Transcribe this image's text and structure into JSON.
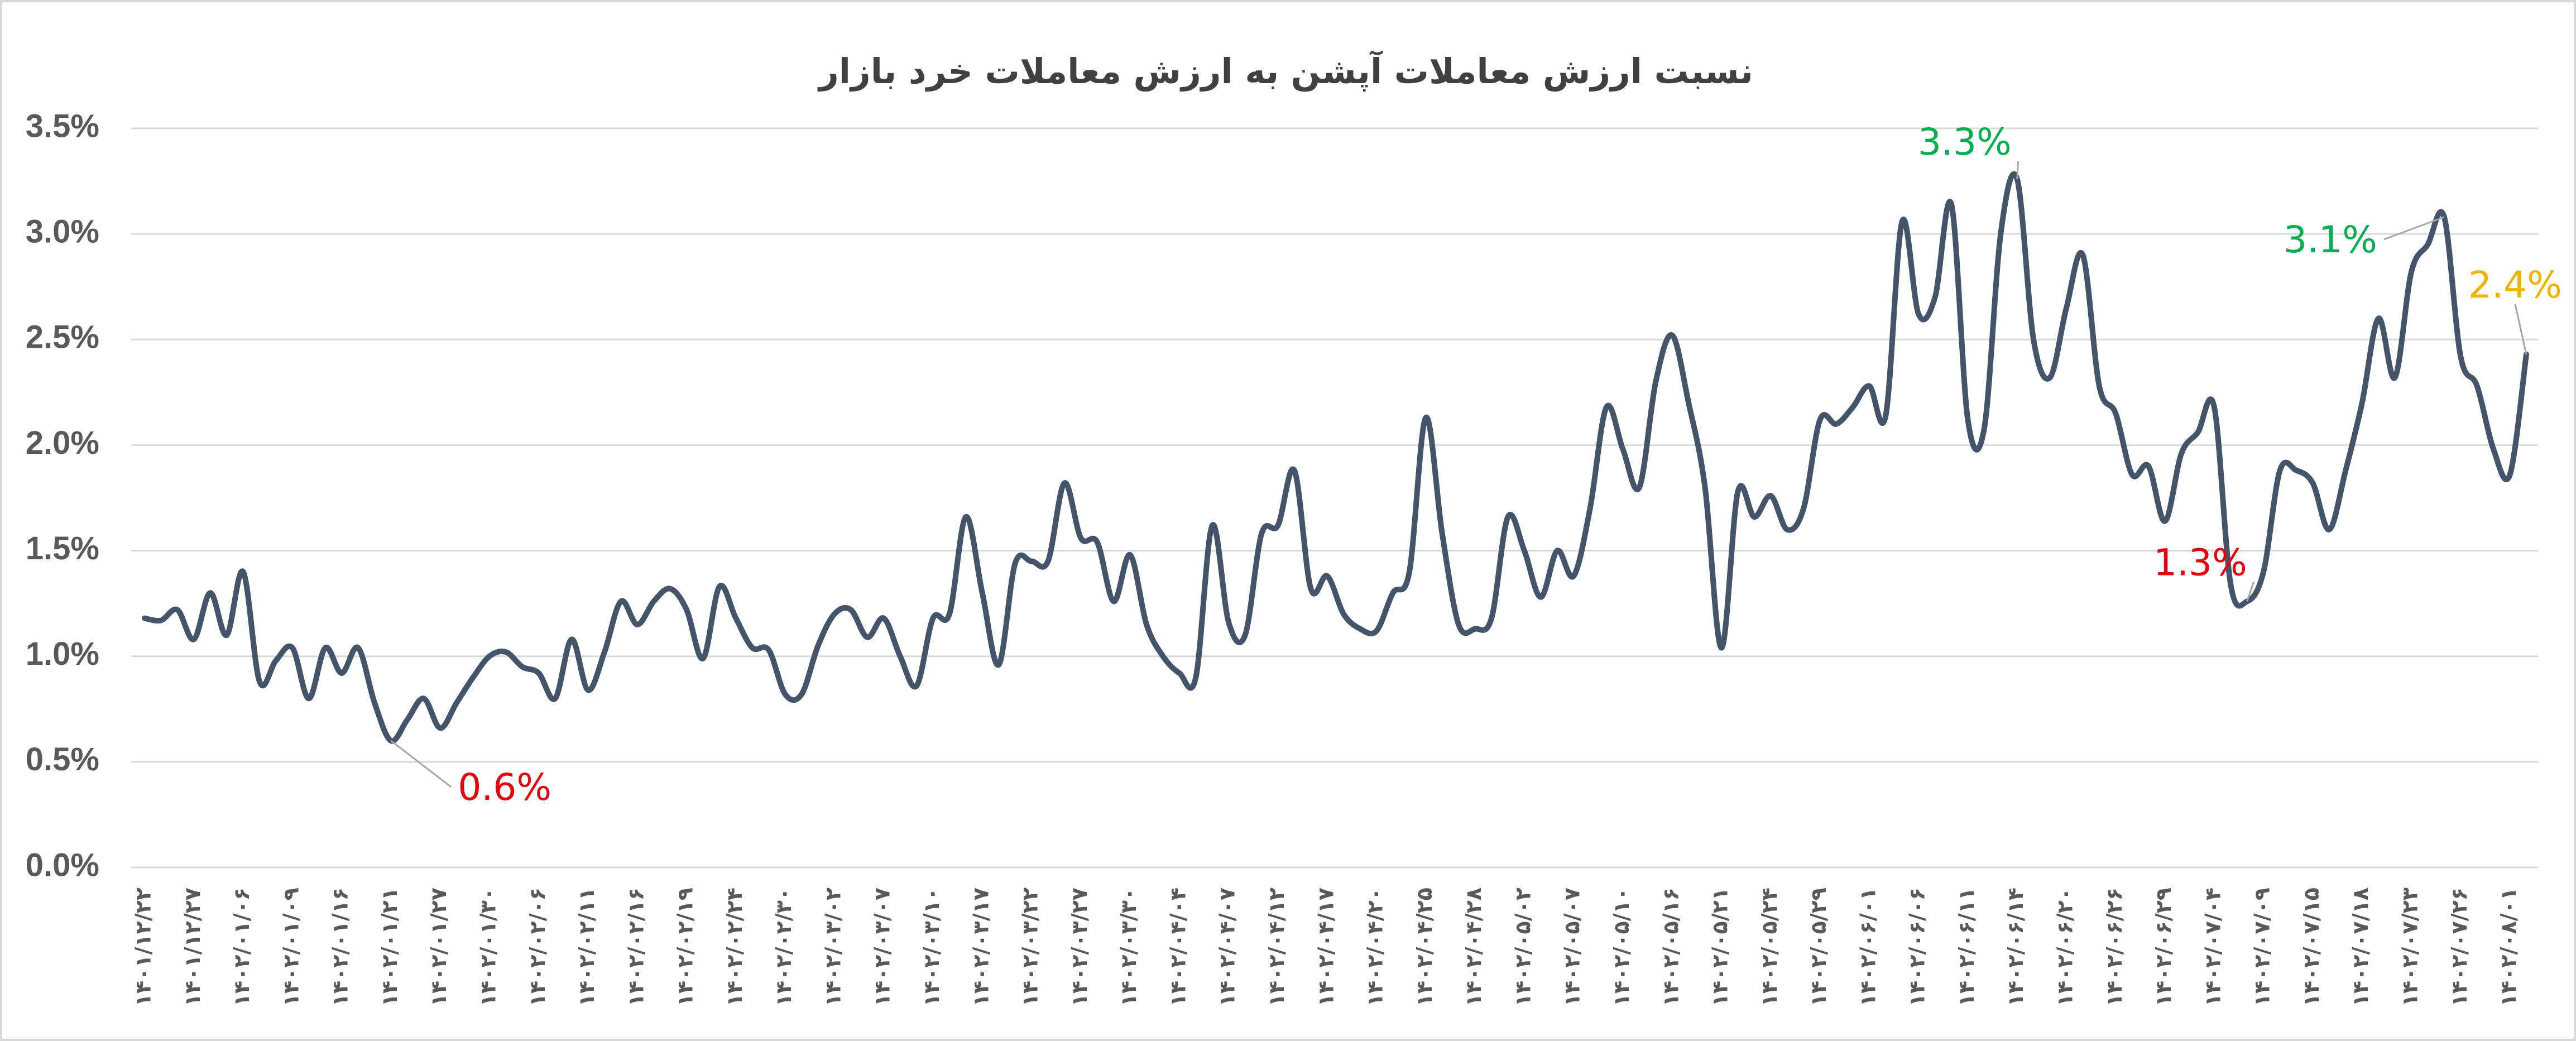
{
  "chart_data": {
    "type": "line",
    "title": "نسبت ارزش معاملات آپشن به ارزش معاملات خرد بازار",
    "categories": [
      "۱۴۰۱/۱۲/۲۲",
      null,
      null,
      "۱۴۰۱/۱۲/۲۷",
      null,
      null,
      "۱۴۰۲/۰۱/۰۶",
      null,
      null,
      "۱۴۰۲/۰۱/۰۹",
      null,
      null,
      "۱۴۰۲/۰۱/۱۶",
      null,
      null,
      "۱۴۰۲/۰۱/۲۱",
      null,
      null,
      "۱۴۰۲/۰۱/۲۷",
      null,
      null,
      "۱۴۰۲/۰۱/۳۰",
      null,
      null,
      "۱۴۰۲/۰۲/۰۶",
      null,
      null,
      "۱۴۰۲/۰۲/۱۱",
      null,
      null,
      "۱۴۰۲/۰۲/۱۶",
      null,
      null,
      "۱۴۰۲/۰۲/۱۹",
      null,
      null,
      "۱۴۰۲/۰۲/۲۴",
      null,
      null,
      "۱۴۰۲/۰۲/۳۰",
      null,
      null,
      "۱۴۰۲/۰۳/۰۲",
      null,
      null,
      "۱۴۰۲/۰۳/۰۷",
      null,
      null,
      "۱۴۰۲/۰۳/۱۰",
      null,
      null,
      "۱۴۰۲/۰۳/۱۷",
      null,
      null,
      "۱۴۰۲/۰۳/۲۲",
      null,
      null,
      "۱۴۰۲/۰۳/۲۷",
      null,
      null,
      "۱۴۰۲/۰۳/۳۰",
      null,
      null,
      "۱۴۰۲/۰۴/۰۴",
      null,
      null,
      "۱۴۰۲/۰۴/۰۷",
      null,
      null,
      "۱۴۰۲/۰۴/۱۲",
      null,
      null,
      "۱۴۰۲/۰۴/۱۷",
      null,
      null,
      "۱۴۰۲/۰۴/۲۰",
      null,
      null,
      "۱۴۰۲/۰۴/۲۵",
      null,
      null,
      "۱۴۰۲/۰۴/۲۸",
      null,
      null,
      "۱۴۰۲/۰۵/۰۲",
      null,
      null,
      "۱۴۰۲/۰۵/۰۷",
      null,
      null,
      "۱۴۰۲/۰۵/۱۰",
      null,
      null,
      "۱۴۰۲/۰۵/۱۶",
      null,
      null,
      "۱۴۰۲/۰۵/۲۱",
      null,
      null,
      "۱۴۰۲/۰۵/۲۴",
      null,
      null,
      "۱۴۰۲/۰۵/۲۹",
      null,
      null,
      "۱۴۰۲/۰۶/۰۱",
      null,
      null,
      "۱۴۰۲/۰۶/۰۶",
      null,
      null,
      "۱۴۰۲/۰۶/۱۱",
      null,
      null,
      "۱۴۰۲/۰۶/۱۴",
      null,
      null,
      "۱۴۰۲/۰۶/۲۰",
      null,
      null,
      "۱۴۰۲/۰۶/۲۶",
      null,
      null,
      "۱۴۰۲/۰۶/۲۹",
      null,
      null,
      "۱۴۰۲/۰۷/۰۴",
      null,
      null,
      "۱۴۰۲/۰۷/۰۹",
      null,
      null,
      "۱۴۰۲/۰۷/۱۵",
      null,
      null,
      "۱۴۰۲/۰۷/۱۸",
      null,
      null,
      "۱۴۰۲/۰۷/۲۳",
      null,
      null,
      "۱۴۰۲/۰۷/۲۶",
      null,
      null,
      "۱۴۰۲/۰۸/۰۱",
      null
    ],
    "series": [
      {
        "color": "#44546a",
        "values": [
          1.18,
          1.17,
          1.22,
          1.08,
          1.3,
          1.1,
          1.4,
          0.88,
          0.98,
          1.04,
          0.8,
          1.04,
          0.92,
          1.04,
          0.78,
          0.6,
          0.7,
          0.8,
          0.66,
          0.78,
          0.9,
          1.0,
          1.02,
          0.95,
          0.92,
          0.8,
          1.08,
          0.84,
          1.02,
          1.26,
          1.15,
          1.26,
          1.32,
          1.22,
          0.99,
          1.33,
          1.18,
          1.04,
          1.03,
          0.82,
          0.82,
          1.05,
          1.2,
          1.22,
          1.09,
          1.18,
          1.0,
          0.86,
          1.18,
          1.2,
          1.66,
          1.3,
          0.96,
          1.44,
          1.45,
          1.45,
          1.82,
          1.56,
          1.54,
          1.26,
          1.48,
          1.15,
          1.0,
          0.92,
          0.9,
          1.62,
          1.16,
          1.1,
          1.58,
          1.62,
          1.88,
          1.32,
          1.38,
          1.2,
          1.13,
          1.12,
          1.3,
          1.4,
          2.13,
          1.58,
          1.15,
          1.13,
          1.18,
          1.66,
          1.5,
          1.28,
          1.5,
          1.38,
          1.7,
          2.18,
          1.98,
          1.8,
          2.3,
          2.52,
          2.2,
          1.8,
          1.04,
          1.78,
          1.66,
          1.76,
          1.6,
          1.7,
          2.12,
          2.1,
          2.18,
          2.28,
          2.14,
          3.06,
          2.62,
          2.7,
          3.14,
          2.12,
          2.08,
          3.0,
          3.26,
          2.5,
          2.32,
          2.65,
          2.9,
          2.28,
          2.15,
          1.86,
          1.9,
          1.64,
          1.96,
          2.06,
          2.18,
          1.34,
          1.26,
          1.4,
          1.88,
          1.88,
          1.82,
          1.6,
          1.88,
          2.2,
          2.6,
          2.32,
          2.82,
          2.95,
          3.08,
          2.42,
          2.28,
          1.98,
          1.86,
          2.43
        ],
        "value_labels": [
          null,
          null,
          null,
          null,
          null,
          null,
          null,
          null,
          null,
          null,
          null,
          null,
          null,
          null,
          null,
          "0.6%",
          null,
          null,
          null,
          null,
          null,
          null,
          null,
          null,
          null,
          null,
          null,
          null,
          null,
          null,
          null,
          null,
          null,
          null,
          null,
          null,
          null,
          null,
          null,
          null,
          null,
          null,
          null,
          null,
          null,
          null,
          null,
          null,
          null,
          null,
          null,
          null,
          null,
          null,
          null,
          null,
          null,
          null,
          null,
          null,
          null,
          null,
          null,
          null,
          null,
          null,
          null,
          null,
          null,
          null,
          null,
          null,
          null,
          null,
          null,
          null,
          null,
          null,
          null,
          null,
          null,
          null,
          null,
          null,
          null,
          null,
          null,
          null,
          null,
          null,
          null,
          null,
          null,
          null,
          null,
          null,
          null,
          null,
          null,
          null,
          null,
          null,
          null,
          null,
          null,
          null,
          null,
          null,
          null,
          null,
          null,
          null,
          null,
          null,
          "3.3%",
          null,
          null,
          null,
          null,
          null,
          null,
          null,
          null,
          null,
          null,
          null,
          null,
          null,
          "1.3%",
          null,
          null,
          null,
          null,
          null,
          null,
          null,
          null,
          null,
          null,
          null,
          "3.1%",
          null,
          null,
          null,
          null,
          "2.4%"
        ],
        "value_label_colors": [
          null,
          null,
          null,
          null,
          null,
          null,
          null,
          null,
          null,
          null,
          null,
          null,
          null,
          null,
          null,
          "#e8000b",
          null,
          null,
          null,
          null,
          null,
          null,
          null,
          null,
          null,
          null,
          null,
          null,
          null,
          null,
          null,
          null,
          null,
          null,
          null,
          null,
          null,
          null,
          null,
          null,
          null,
          null,
          null,
          null,
          null,
          null,
          null,
          null,
          null,
          null,
          null,
          null,
          null,
          null,
          null,
          null,
          null,
          null,
          null,
          null,
          null,
          null,
          null,
          null,
          null,
          null,
          null,
          null,
          null,
          null,
          null,
          null,
          null,
          null,
          null,
          null,
          null,
          null,
          null,
          null,
          null,
          null,
          null,
          null,
          null,
          null,
          null,
          null,
          null,
          null,
          null,
          null,
          null,
          null,
          null,
          null,
          null,
          null,
          null,
          null,
          null,
          null,
          null,
          null,
          null,
          null,
          null,
          null,
          null,
          null,
          null,
          null,
          null,
          null,
          "#00b050",
          null,
          null,
          null,
          null,
          null,
          null,
          null,
          null,
          null,
          null,
          null,
          null,
          null,
          "#e8000b",
          null,
          null,
          null,
          null,
          null,
          null,
          null,
          null,
          null,
          null,
          null,
          "#00b050",
          null,
          null,
          null,
          null,
          "#f0b400"
        ]
      }
    ],
    "ylim": [
      0,
      3.5
    ],
    "yticks": [
      {
        "value": 0,
        "label": "0.0%"
      },
      {
        "value": 0.5,
        "label": "0.5%"
      },
      {
        "value": 1,
        "label": "1.0%"
      },
      {
        "value": 1.5,
        "label": "1.5%"
      },
      {
        "value": 2,
        "label": "2.0%"
      },
      {
        "value": 2.5,
        "label": "2.5%"
      },
      {
        "value": 3,
        "label": "3.0%"
      },
      {
        "value": 3.5,
        "label": "3.5%"
      }
    ],
    "grid": true
  }
}
